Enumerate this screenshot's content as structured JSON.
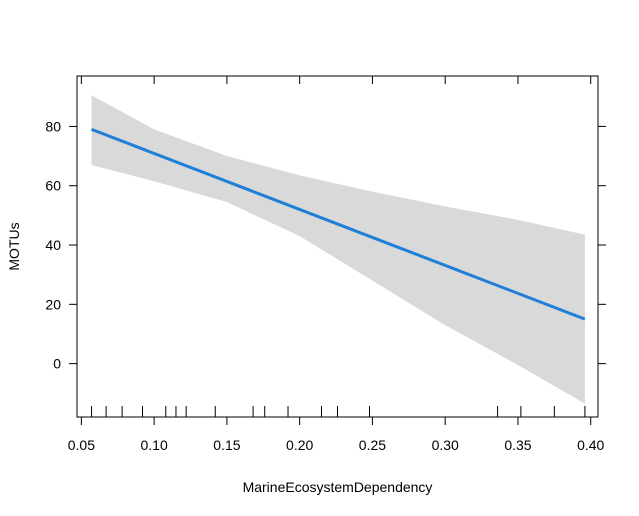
{
  "chart_data": {
    "type": "line",
    "title": "",
    "xlabel": "MarineEcosystemDependency",
    "ylabel": "MOTUs",
    "xlim": [
      0.047,
      0.405
    ],
    "ylim": [
      -18,
      97
    ],
    "xticks": [
      0.05,
      0.1,
      0.15,
      0.2,
      0.25,
      0.3,
      0.35,
      0.4
    ],
    "xtick_labels": [
      "0.05",
      "0.10",
      "0.15",
      "0.20",
      "0.25",
      "0.30",
      "0.35",
      "0.40"
    ],
    "yticks": [
      0,
      20,
      40,
      60,
      80
    ],
    "ytick_labels": [
      "0",
      "20",
      "40",
      "60",
      "80"
    ],
    "rug_x": [
      0.057,
      0.067,
      0.078,
      0.092,
      0.108,
      0.115,
      0.122,
      0.142,
      0.168,
      0.176,
      0.192,
      0.215,
      0.226,
      0.248,
      0.336,
      0.352,
      0.375,
      0.396
    ],
    "series": [
      {
        "color": "#1f7fd8",
        "x": [
          0.057,
          0.396
        ],
        "y": [
          79,
          15
        ]
      }
    ],
    "confidence_band": {
      "color": "#d9d9d9",
      "x": [
        0.057,
        0.1,
        0.15,
        0.2,
        0.25,
        0.3,
        0.35,
        0.396
      ],
      "upper": [
        90.5,
        79,
        70,
        63.5,
        58,
        53,
        48.5,
        43.5
      ],
      "lower": [
        67,
        61.5,
        54.5,
        43,
        28,
        13,
        -0.5,
        -13.5
      ]
    },
    "grid": false,
    "legend": "none"
  }
}
